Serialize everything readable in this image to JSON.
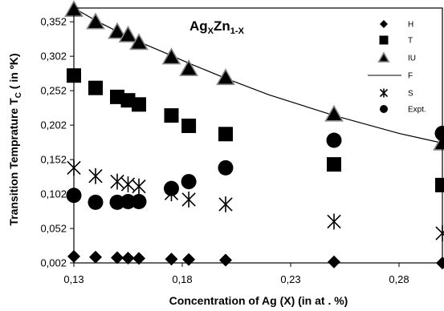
{
  "chart_data": {
    "type": "scatter",
    "title": {
      "parts": [
        {
          "text": "Ag",
          "sub": false
        },
        {
          "text": "X",
          "sub": true
        },
        {
          "text": "Zn",
          "sub": false
        },
        {
          "text": "1-X",
          "sub": true
        }
      ]
    },
    "xlabel": "Concentration of Ag (X) (in at . %)",
    "ylabel": {
      "parts": [
        {
          "text": "Transition Temprature T",
          "sub": false
        },
        {
          "text": "C",
          "sub": true
        },
        {
          "text": " ( in ºK)",
          "sub": false
        }
      ]
    },
    "xlim": [
      0.13,
      0.3
    ],
    "ylim": [
      0.002,
      0.372
    ],
    "x_ticks": [
      {
        "value": 0.13,
        "label": "0,13"
      },
      {
        "value": 0.18,
        "label": "0,18"
      },
      {
        "value": 0.23,
        "label": "0,23"
      },
      {
        "value": 0.28,
        "label": "0,28"
      }
    ],
    "y_ticks": [
      {
        "value": 0.002,
        "label": "0,002"
      },
      {
        "value": 0.052,
        "label": "0,052"
      },
      {
        "value": 0.102,
        "label": "0,102"
      },
      {
        "value": 0.152,
        "label": "0,152"
      },
      {
        "value": 0.202,
        "label": "0,202"
      },
      {
        "value": 0.252,
        "label": "0,252"
      },
      {
        "value": 0.302,
        "label": "0,302"
      },
      {
        "value": 0.352,
        "label": "0,352"
      }
    ],
    "grid": false,
    "legend_position": "top-right",
    "series": [
      {
        "name": "H",
        "marker": "diamond",
        "x": [
          0.13,
          0.14,
          0.15,
          0.155,
          0.16,
          0.175,
          0.183,
          0.2,
          0.25,
          0.3
        ],
        "y": [
          0.0115,
          0.0105,
          0.0095,
          0.009,
          0.0085,
          0.0075,
          0.007,
          0.006,
          0.0035,
          0.0018
        ]
      },
      {
        "name": "T",
        "marker": "square",
        "x": [
          0.13,
          0.14,
          0.15,
          0.155,
          0.16,
          0.175,
          0.183,
          0.2,
          0.25,
          0.3
        ],
        "y": [
          0.274,
          0.256,
          0.243,
          0.238,
          0.232,
          0.216,
          0.201,
          0.189,
          0.145,
          0.115
        ]
      },
      {
        "name": "IU",
        "marker": "triangle",
        "x": [
          0.13,
          0.14,
          0.15,
          0.155,
          0.16,
          0.175,
          0.183,
          0.2,
          0.25,
          0.3
        ],
        "y": [
          0.37,
          0.352,
          0.338,
          0.333,
          0.322,
          0.301,
          0.284,
          0.271,
          0.218,
          0.176
        ]
      },
      {
        "name": "F",
        "marker": "line",
        "x": [
          0.13,
          0.14,
          0.15,
          0.16,
          0.175,
          0.183,
          0.2,
          0.22,
          0.25,
          0.28,
          0.3
        ],
        "y": [
          0.372,
          0.354,
          0.338,
          0.323,
          0.303,
          0.292,
          0.27,
          0.246,
          0.216,
          0.19,
          0.176
        ]
      },
      {
        "name": "S",
        "marker": "asterisk",
        "x": [
          0.13,
          0.14,
          0.15,
          0.155,
          0.16,
          0.175,
          0.183,
          0.2,
          0.25,
          0.3
        ],
        "y": [
          0.14,
          0.128,
          0.12,
          0.116,
          0.113,
          0.103,
          0.094,
          0.087,
          0.062,
          0.045
        ]
      },
      {
        "name": "Expt.",
        "marker": "circle",
        "x": [
          0.13,
          0.14,
          0.15,
          0.155,
          0.16,
          0.175,
          0.183,
          0.2,
          0.25,
          0.3
        ],
        "y": [
          0.1,
          0.09,
          0.09,
          0.091,
          0.091,
          0.11,
          0.12,
          0.14,
          0.18,
          0.19
        ]
      }
    ],
    "colors": {
      "markers": "#000000",
      "background": "#ffffff"
    }
  }
}
